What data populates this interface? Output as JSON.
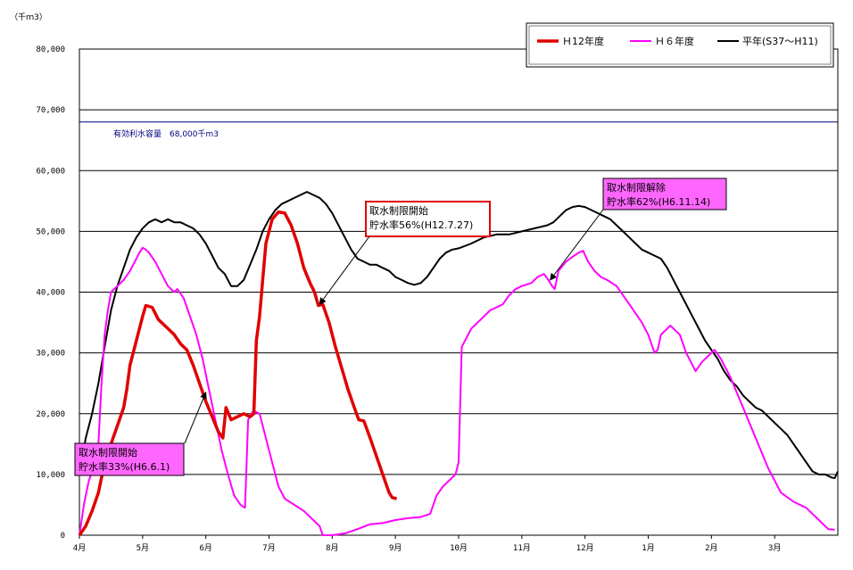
{
  "chart_data": {
    "type": "line",
    "unit_label": "（千ｍ3）",
    "ylim": [
      0,
      80000
    ],
    "y_ticks": [
      "0",
      "10,000",
      "20,000",
      "30,000",
      "40,000",
      "50,000",
      "60,000",
      "70,000",
      "80,000"
    ],
    "y_tick_values": [
      0,
      10000,
      20000,
      30000,
      40000,
      50000,
      60000,
      70000,
      80000
    ],
    "x_ticks": [
      "4月",
      "5月",
      "6月",
      "7月",
      "8月",
      "9月",
      "10月",
      "11月",
      "12月",
      "1月",
      "2月",
      "3月"
    ],
    "x_tick_values": [
      0,
      1,
      2,
      3,
      4,
      5,
      6,
      7,
      8,
      9,
      10,
      11
    ],
    "xlim": [
      0,
      12
    ],
    "grid": true,
    "legend_position": "top-right",
    "capacity_line": {
      "value": 68000,
      "label": "有効利水容量　68,000千m3",
      "color": "#000080"
    },
    "series": [
      {
        "name": "Ｈ12年度",
        "color": "#e00000",
        "points": [
          [
            0.0,
            0
          ],
          [
            0.1,
            1500
          ],
          [
            0.2,
            4000
          ],
          [
            0.3,
            7000
          ],
          [
            0.4,
            12000
          ],
          [
            0.5,
            15000
          ],
          [
            0.6,
            18000
          ],
          [
            0.7,
            21000
          ],
          [
            0.75,
            24000
          ],
          [
            0.8,
            28000
          ],
          [
            0.9,
            32000
          ],
          [
            1.0,
            36000
          ],
          [
            1.05,
            37800
          ],
          [
            1.15,
            37500
          ],
          [
            1.25,
            35500
          ],
          [
            1.4,
            34000
          ],
          [
            1.5,
            33000
          ],
          [
            1.6,
            31500
          ],
          [
            1.7,
            30500
          ],
          [
            1.8,
            28000
          ],
          [
            1.9,
            25000
          ],
          [
            2.0,
            22000
          ],
          [
            2.1,
            19500
          ],
          [
            2.2,
            17000
          ],
          [
            2.27,
            16000
          ],
          [
            2.32,
            21000
          ],
          [
            2.4,
            19000
          ],
          [
            2.5,
            19500
          ],
          [
            2.6,
            20000
          ],
          [
            2.7,
            19500
          ],
          [
            2.76,
            20000
          ],
          [
            2.8,
            32000
          ],
          [
            2.85,
            36000
          ],
          [
            2.9,
            42000
          ],
          [
            2.95,
            48000
          ],
          [
            3.05,
            52000
          ],
          [
            3.15,
            53200
          ],
          [
            3.25,
            53000
          ],
          [
            3.35,
            51000
          ],
          [
            3.45,
            48000
          ],
          [
            3.55,
            44000
          ],
          [
            3.65,
            41500
          ],
          [
            3.72,
            40000
          ],
          [
            3.78,
            37800
          ],
          [
            3.85,
            38000
          ],
          [
            3.95,
            35000
          ],
          [
            4.05,
            31000
          ],
          [
            4.15,
            27500
          ],
          [
            4.25,
            24000
          ],
          [
            4.35,
            21000
          ],
          [
            4.42,
            19000
          ],
          [
            4.5,
            18800
          ],
          [
            4.6,
            16000
          ],
          [
            4.7,
            13000
          ],
          [
            4.8,
            10000
          ],
          [
            4.9,
            7000
          ],
          [
            4.95,
            6200
          ],
          [
            5.02,
            6000
          ]
        ]
      },
      {
        "name": "Ｈ６年度",
        "color": "#ff00ff",
        "points": [
          [
            0.0,
            0
          ],
          [
            0.07,
            5000
          ],
          [
            0.15,
            9000
          ],
          [
            0.2,
            10500
          ],
          [
            0.27,
            10000
          ],
          [
            0.3,
            15000
          ],
          [
            0.35,
            25000
          ],
          [
            0.4,
            33000
          ],
          [
            0.45,
            37000
          ],
          [
            0.5,
            40000
          ],
          [
            0.6,
            41000
          ],
          [
            0.7,
            42000
          ],
          [
            0.8,
            43500
          ],
          [
            0.9,
            45500
          ],
          [
            0.95,
            46500
          ],
          [
            1.0,
            47300
          ],
          [
            1.05,
            47000
          ],
          [
            1.1,
            46500
          ],
          [
            1.2,
            45000
          ],
          [
            1.3,
            43000
          ],
          [
            1.4,
            41000
          ],
          [
            1.5,
            40000
          ],
          [
            1.55,
            40500
          ],
          [
            1.65,
            39000
          ],
          [
            1.75,
            36000
          ],
          [
            1.85,
            33000
          ],
          [
            1.95,
            29000
          ],
          [
            2.05,
            24000
          ],
          [
            2.15,
            19000
          ],
          [
            2.25,
            14000
          ],
          [
            2.35,
            10000
          ],
          [
            2.45,
            6500
          ],
          [
            2.55,
            5000
          ],
          [
            2.62,
            4500
          ],
          [
            2.67,
            19000
          ],
          [
            2.75,
            20500
          ],
          [
            2.85,
            20000
          ],
          [
            2.95,
            16000
          ],
          [
            3.05,
            12000
          ],
          [
            3.15,
            8000
          ],
          [
            3.25,
            6000
          ],
          [
            3.4,
            5000
          ],
          [
            3.55,
            4000
          ],
          [
            3.7,
            2500
          ],
          [
            3.8,
            1500
          ],
          [
            3.85,
            0
          ],
          [
            4.0,
            0
          ],
          [
            4.2,
            300
          ],
          [
            4.4,
            1000
          ],
          [
            4.6,
            1800
          ],
          [
            4.8,
            2000
          ],
          [
            5.0,
            2500
          ],
          [
            5.2,
            2800
          ],
          [
            5.4,
            3000
          ],
          [
            5.55,
            3500
          ],
          [
            5.65,
            6500
          ],
          [
            5.75,
            8000
          ],
          [
            5.85,
            9000
          ],
          [
            5.95,
            10000
          ],
          [
            6.0,
            12000
          ],
          [
            6.05,
            31000
          ],
          [
            6.1,
            32000
          ],
          [
            6.2,
            34000
          ],
          [
            6.35,
            35500
          ],
          [
            6.5,
            37000
          ],
          [
            6.6,
            37500
          ],
          [
            6.7,
            38000
          ],
          [
            6.8,
            39500
          ],
          [
            6.9,
            40500
          ],
          [
            7.0,
            41000
          ],
          [
            7.15,
            41500
          ],
          [
            7.25,
            42500
          ],
          [
            7.35,
            43000
          ],
          [
            7.42,
            42000
          ],
          [
            7.48,
            41000
          ],
          [
            7.52,
            40500
          ],
          [
            7.58,
            43500
          ],
          [
            7.7,
            45000
          ],
          [
            7.8,
            45800
          ],
          [
            7.9,
            46500
          ],
          [
            7.97,
            46800
          ],
          [
            8.05,
            45000
          ],
          [
            8.15,
            43500
          ],
          [
            8.25,
            42500
          ],
          [
            8.35,
            42000
          ],
          [
            8.5,
            41000
          ],
          [
            8.6,
            39500
          ],
          [
            8.7,
            38000
          ],
          [
            8.8,
            36500
          ],
          [
            8.9,
            35000
          ],
          [
            9.0,
            33000
          ],
          [
            9.1,
            30000
          ],
          [
            9.15,
            30500
          ],
          [
            9.2,
            33000
          ],
          [
            9.35,
            34500
          ],
          [
            9.5,
            33000
          ],
          [
            9.6,
            30000
          ],
          [
            9.7,
            28000
          ],
          [
            9.75,
            27000
          ],
          [
            9.85,
            28500
          ],
          [
            10.0,
            30000
          ],
          [
            10.05,
            30500
          ],
          [
            10.15,
            29000
          ],
          [
            10.3,
            26000
          ],
          [
            10.5,
            21000
          ],
          [
            10.7,
            16000
          ],
          [
            10.9,
            11000
          ],
          [
            11.1,
            7000
          ],
          [
            11.3,
            5500
          ],
          [
            11.4,
            5000
          ],
          [
            11.5,
            4500
          ],
          [
            11.6,
            3500
          ],
          [
            11.7,
            2500
          ],
          [
            11.8,
            1500
          ],
          [
            11.85,
            1000
          ],
          [
            11.95,
            900
          ]
        ]
      },
      {
        "name": "平年(S37～H11)",
        "color": "#000000",
        "points": [
          [
            0.0,
            10000
          ],
          [
            0.05,
            13000
          ],
          [
            0.1,
            16000
          ],
          [
            0.2,
            20000
          ],
          [
            0.3,
            25000
          ],
          [
            0.4,
            31000
          ],
          [
            0.5,
            37000
          ],
          [
            0.6,
            41000
          ],
          [
            0.7,
            44000
          ],
          [
            0.8,
            47000
          ],
          [
            0.9,
            49000
          ],
          [
            1.0,
            50500
          ],
          [
            1.1,
            51500
          ],
          [
            1.2,
            52000
          ],
          [
            1.3,
            51500
          ],
          [
            1.4,
            52000
          ],
          [
            1.5,
            51500
          ],
          [
            1.6,
            51500
          ],
          [
            1.7,
            51000
          ],
          [
            1.8,
            50500
          ],
          [
            1.9,
            49500
          ],
          [
            2.0,
            48000
          ],
          [
            2.1,
            46000
          ],
          [
            2.2,
            44000
          ],
          [
            2.3,
            43000
          ],
          [
            2.4,
            41000
          ],
          [
            2.5,
            41000
          ],
          [
            2.6,
            42000
          ],
          [
            2.7,
            44500
          ],
          [
            2.8,
            47000
          ],
          [
            2.9,
            50000
          ],
          [
            3.0,
            52000
          ],
          [
            3.1,
            53500
          ],
          [
            3.2,
            54500
          ],
          [
            3.3,
            55000
          ],
          [
            3.4,
            55500
          ],
          [
            3.5,
            56000
          ],
          [
            3.6,
            56500
          ],
          [
            3.7,
            56000
          ],
          [
            3.8,
            55500
          ],
          [
            3.9,
            54500
          ],
          [
            4.0,
            53000
          ],
          [
            4.1,
            51000
          ],
          [
            4.2,
            49000
          ],
          [
            4.3,
            47000
          ],
          [
            4.4,
            45500
          ],
          [
            4.5,
            45000
          ],
          [
            4.6,
            44500
          ],
          [
            4.7,
            44500
          ],
          [
            4.8,
            44000
          ],
          [
            4.9,
            43500
          ],
          [
            5.0,
            42500
          ],
          [
            5.1,
            42000
          ],
          [
            5.2,
            41500
          ],
          [
            5.3,
            41200
          ],
          [
            5.4,
            41500
          ],
          [
            5.5,
            42500
          ],
          [
            5.6,
            44000
          ],
          [
            5.7,
            45500
          ],
          [
            5.8,
            46500
          ],
          [
            5.9,
            47000
          ],
          [
            6.0,
            47200
          ],
          [
            6.2,
            48000
          ],
          [
            6.4,
            49000
          ],
          [
            6.6,
            49500
          ],
          [
            6.8,
            49500
          ],
          [
            7.0,
            50000
          ],
          [
            7.2,
            50500
          ],
          [
            7.4,
            51000
          ],
          [
            7.5,
            51500
          ],
          [
            7.6,
            52500
          ],
          [
            7.7,
            53500
          ],
          [
            7.8,
            54000
          ],
          [
            7.9,
            54200
          ],
          [
            8.0,
            54000
          ],
          [
            8.1,
            53500
          ],
          [
            8.2,
            53000
          ],
          [
            8.3,
            52500
          ],
          [
            8.4,
            52000
          ],
          [
            8.5,
            51000
          ],
          [
            8.6,
            50000
          ],
          [
            8.7,
            49000
          ],
          [
            8.8,
            48000
          ],
          [
            8.9,
            47000
          ],
          [
            9.0,
            46500
          ],
          [
            9.1,
            46000
          ],
          [
            9.2,
            45500
          ],
          [
            9.3,
            44000
          ],
          [
            9.4,
            42000
          ],
          [
            9.5,
            40000
          ],
          [
            9.6,
            38000
          ],
          [
            9.7,
            36000
          ],
          [
            9.8,
            34000
          ],
          [
            9.9,
            32000
          ],
          [
            10.0,
            30500
          ],
          [
            10.1,
            29000
          ],
          [
            10.2,
            27000
          ],
          [
            10.3,
            25500
          ],
          [
            10.4,
            24500
          ],
          [
            10.5,
            23000
          ],
          [
            10.6,
            22000
          ],
          [
            10.7,
            21000
          ],
          [
            10.8,
            20500
          ],
          [
            10.9,
            19500
          ],
          [
            11.0,
            18500
          ],
          [
            11.1,
            17500
          ],
          [
            11.2,
            16500
          ],
          [
            11.3,
            15000
          ],
          [
            11.4,
            13500
          ],
          [
            11.5,
            12000
          ],
          [
            11.6,
            10500
          ],
          [
            11.7,
            10000
          ],
          [
            11.8,
            10000
          ],
          [
            11.9,
            9500
          ],
          [
            11.95,
            9400
          ],
          [
            12.0,
            10500
          ]
        ]
      }
    ],
    "annotations": [
      {
        "lines": [
          "取水制限開始",
          "貯水率33%(H6.6.1)"
        ],
        "style": "magenta-fill",
        "arrow_to": [
          2.0,
          23500
        ]
      },
      {
        "lines": [
          "取水制限開始",
          "貯水率56%(H12.7.27)"
        ],
        "style": "red-border",
        "arrow_to": [
          3.8,
          38000
        ]
      },
      {
        "lines": [
          "取水制限解除",
          "貯水率62%(H6.11.14)"
        ],
        "style": "magenta-fill",
        "arrow_to": [
          7.45,
          42000
        ]
      }
    ]
  }
}
